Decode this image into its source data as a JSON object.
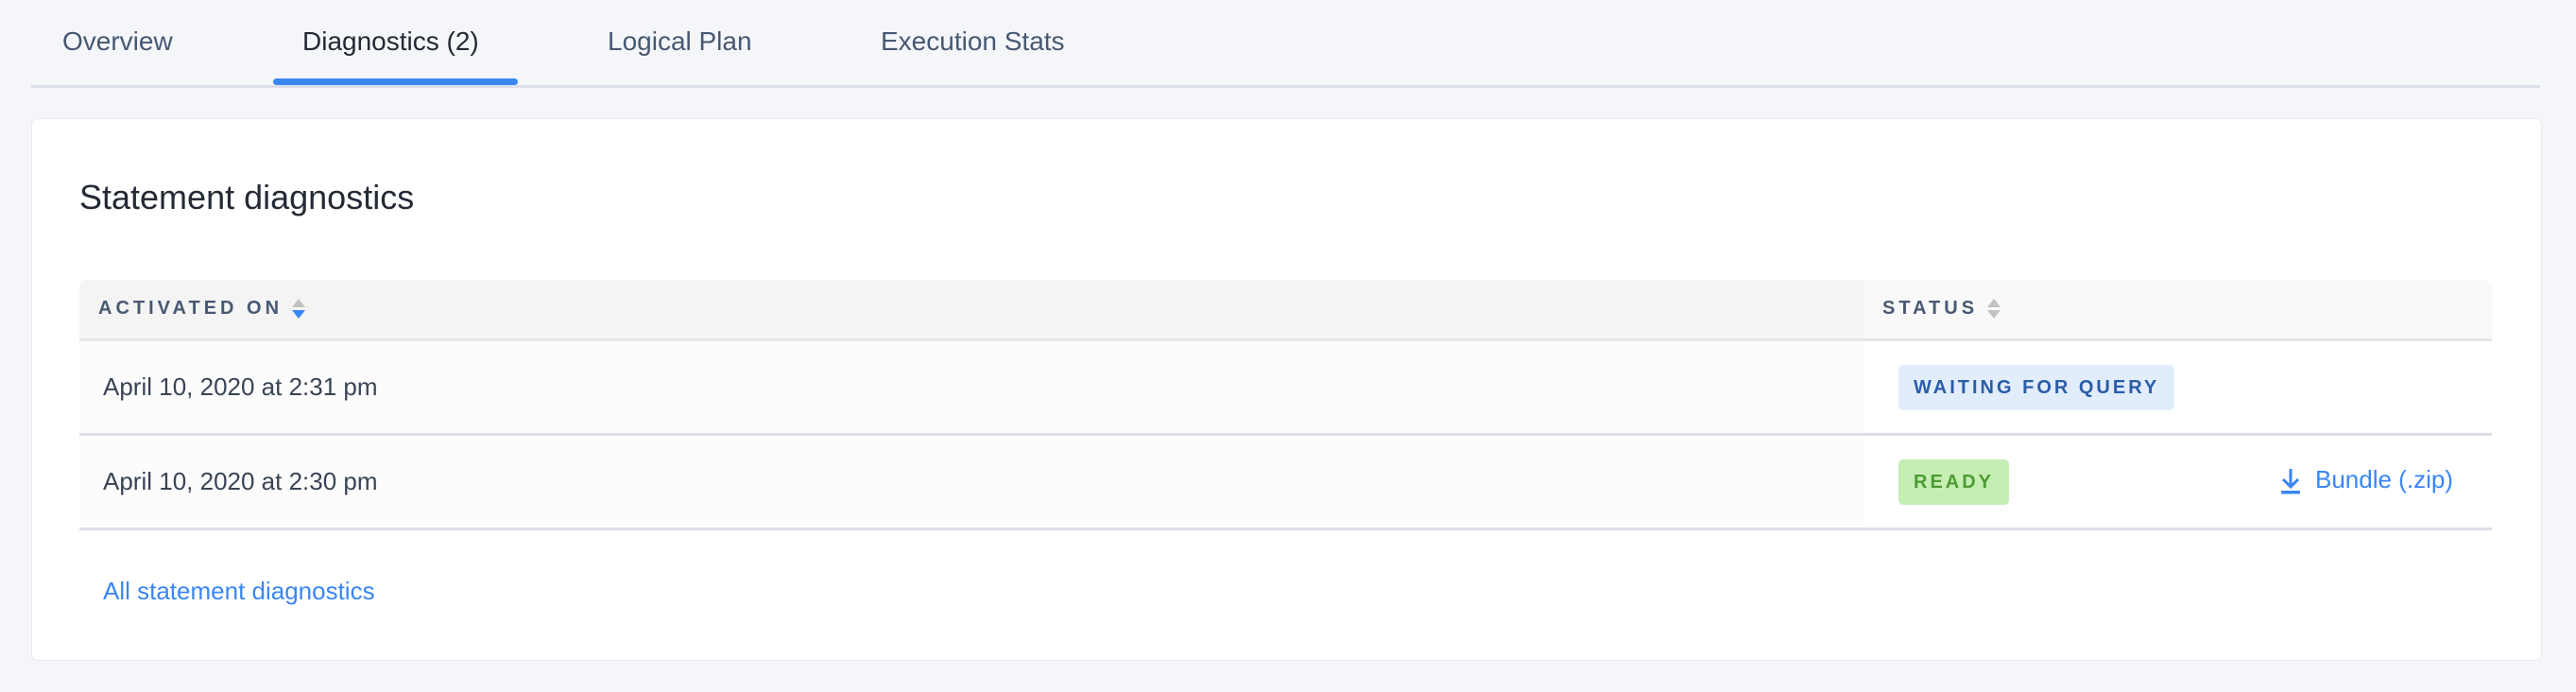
{
  "tabs": [
    {
      "label": "Overview",
      "active": false
    },
    {
      "label": "Diagnostics (2)",
      "active": true
    },
    {
      "label": "Logical Plan",
      "active": false
    },
    {
      "label": "Execution Stats",
      "active": false
    }
  ],
  "card": {
    "title": "Statement diagnostics",
    "table": {
      "columns": [
        {
          "label": "ACTIVATED ON",
          "sort": "descending"
        },
        {
          "label": "STATUS",
          "sort": "none"
        }
      ],
      "rows": [
        {
          "activated_on": "April 10, 2020 at 2:31 pm",
          "status": "WAITING FOR QUERY",
          "action": null
        },
        {
          "activated_on": "April 10, 2020 at 2:30 pm",
          "status": "READY",
          "action": "Bundle (.zip)"
        }
      ]
    },
    "footer_link": "All statement diagnostics"
  },
  "colors": {
    "accent": "#3a86f5",
    "waiting_bg": "#e1edfa",
    "waiting_text": "#2a5ca8",
    "ready_bg": "#c5eeb3",
    "ready_text": "#4e9a35"
  },
  "icons": {
    "download": "download-icon",
    "sort": "sort-caret-icon"
  }
}
